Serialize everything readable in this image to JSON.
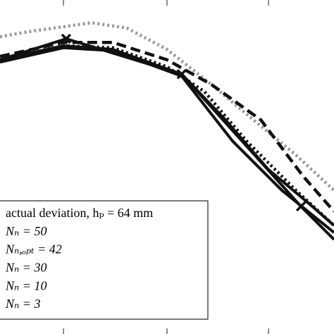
{
  "chart_data": {
    "type": "line",
    "xlim": [
      0,
      100
    ],
    "ylim": [
      0,
      100
    ],
    "xticks": [
      19,
      50,
      80.4
    ],
    "legend": "lower left",
    "series": [
      {
        "name": "actual deviation, hₚ = 64 mm",
        "color": "#999999",
        "dash": "dotted",
        "marker": false,
        "x": [
          0,
          8.4,
          19,
          27.4,
          38,
          50,
          63.3,
          75.9,
          88.6,
          100
        ],
        "values": [
          89,
          90.5,
          92,
          93.2,
          91.6,
          85.2,
          74.7,
          64.1,
          53.6,
          43
        ]
      },
      {
        "name": "Nₙ = 50",
        "color": "#111111",
        "dash": "dashed",
        "marker": false,
        "x": [
          0,
          19,
          33.8,
          50,
          63.3,
          78.1,
          90.7,
          100
        ],
        "values": [
          83.1,
          87.3,
          87.3,
          82.1,
          74.7,
          64.1,
          47.3,
          36.7
        ]
      },
      {
        "name": "Nₙ,ₒₚₜ = 42",
        "color": "#111111",
        "dash": "dotted",
        "marker": false,
        "x": [
          0,
          19,
          33.8,
          50,
          61.2,
          73.8,
          88.6,
          100
        ],
        "values": [
          82.1,
          86.3,
          85.7,
          80,
          72.6,
          57.8,
          43,
          32.5
        ]
      },
      {
        "name": "Nₙ = 30",
        "color": "#111111",
        "dash": "solid",
        "marker": false,
        "x": [
          0,
          19,
          33.8,
          54.4,
          67.5,
          80.2,
          92.8,
          100
        ],
        "values": [
          82.1,
          86.3,
          85.2,
          77.8,
          64.1,
          49.4,
          38.8,
          32.5
        ]
      },
      {
        "name": "Nₙ = 10",
        "color": "#111111",
        "dash": "solid",
        "marker": false,
        "x": [
          0,
          19,
          33.8,
          54.4,
          69.6,
          84.4,
          100
        ],
        "values": [
          81.4,
          85.7,
          84.8,
          77.2,
          57.8,
          43,
          30.4
        ]
      },
      {
        "name": "Nₙ = 3",
        "color": "#111111",
        "dash": "solid",
        "marker": true,
        "x": [
          0,
          19.8,
          54.4,
          90.1,
          100
        ],
        "values": [
          82.1,
          88.4,
          77.8,
          38.2,
          28.3
        ]
      }
    ]
  }
}
